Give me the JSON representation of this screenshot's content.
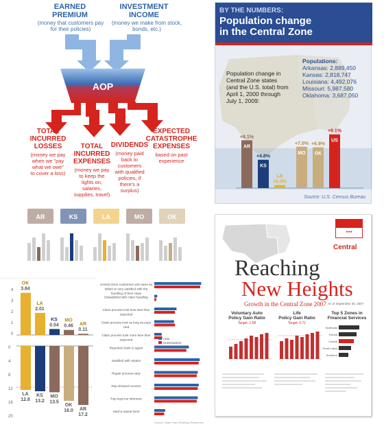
{
  "colors": {
    "blue": "#2a62a8",
    "red": "#d5241d",
    "purple": "#5b3f8d",
    "brown": "#8b6a5b",
    "gold": "#e7b02f",
    "tan": "#c9ad7f",
    "navy": "#1c3d7a"
  },
  "aop": {
    "earned_title": "EARNED\nPREMIUM",
    "earned_sub": "(money that customers pay\nfor their policies)",
    "invest_title": "INVESTMENT\nINCOME",
    "invest_sub": "(money we make from stock,\nbonds, etc.)",
    "center": "AOP",
    "outputs": [
      {
        "title": "TOTAL\nINCURRED\nLOSSES",
        "sub": "(money we pay\nwhen we \"pay\nwhat we owe\"\nto cover a loss)"
      },
      {
        "title": "TOTAL\nINCURRED\nEXPENSES",
        "sub": "(money we pay\nto keep the\nlights on,\nsalaries,\nsupplies, travel)"
      },
      {
        "title": "DIVIDENDS",
        "sub": "(money paid\nback to\ncustomers\nwith qualified\npolicies, if\nthere's a\nsurplus)"
      },
      {
        "title": "EXPECTED\nCATASTROPHE\nEXPENSES",
        "sub": "based on past\nexperience"
      }
    ]
  },
  "numbers": {
    "kicker": "BY THE NUMBERS:",
    "title": "Population change\nin the Central Zone",
    "populations_label": "Populations:",
    "populations": [
      "Arkansas: 2,889,450",
      "Kansas: 2,818,747",
      "Louisiana: 4,492,076",
      "Missouri: 5,987,580",
      "Oklahoma: 3,687,050"
    ],
    "description": "Population change in\nCentral Zone states\n(and the U.S. total) from\nApril 1, 2000 through\nJuly 1, 2009:",
    "source": "Source: U.S. Census Bureau"
  },
  "chart_data": [
    {
      "type": "bar",
      "title": "",
      "categories": [
        "AR",
        "KS",
        "LA",
        "MO",
        "OK",
        "US"
      ],
      "values": [
        8.1,
        4.8,
        0.5,
        7.0,
        6.9,
        9.1
      ],
      "value_labels": [
        "+8.1%",
        "+4.8%",
        "+0.5%",
        "+7.0%",
        "+6.9%",
        "+9.1%"
      ],
      "colors": [
        "#8b6a5b",
        "#1c3d7a",
        "#e7b02f",
        "#c9ad7f",
        "#c9ad7f",
        "#d5241d"
      ],
      "ylim": [
        0,
        10
      ]
    },
    {
      "type": "bar",
      "title": "",
      "categories": [
        "OK",
        "LA",
        "KS",
        "MO",
        "AR"
      ],
      "values": [
        3.84,
        2.01,
        0.54,
        0.46,
        0.11
      ],
      "value_labels": [
        "3.84",
        "2.01",
        "0.54",
        "0.46",
        "0.11"
      ],
      "colors": [
        "#e7b02f",
        "#e7b02f",
        "#1c3d7a",
        "#8b6a5b",
        "#8b6a5b"
      ],
      "ylim": [
        0,
        4
      ]
    },
    {
      "type": "bar",
      "title": "",
      "categories": [
        "LA",
        "KS",
        "MO",
        "OK",
        "AR"
      ],
      "values": [
        12.8,
        13.2,
        13.5,
        16.0,
        17.2
      ],
      "value_labels": [
        "12.8",
        "13.2",
        "13.5",
        "16.0",
        "17.2"
      ],
      "colors": [
        "#e7b02f",
        "#1c3d7a",
        "#8b6a5b",
        "#c9ad7f",
        "#8b6a5b"
      ],
      "ylim": [
        0,
        20
      ]
    },
    {
      "type": "bar",
      "title": "",
      "categories": [
        "Central Zone customers who were satisfied or very satisfied with the handling of their claim",
        "Dissatisfied with claim handling",
        "Claim process took less time than expected",
        "Claim process took as long as expected",
        "Claim process took more time than expected",
        "Reported claim to agent",
        "Satisfied with repairs",
        "Repair process easy",
        "Rep showed concern",
        "Rep kept me informed",
        "Had to repeat facts"
      ],
      "series": [
        {
          "name": "Auto",
          "values": [
            95,
            6,
            45,
            40,
            15,
            70,
            92,
            88,
            90,
            88,
            22
          ]
        },
        {
          "name": "Homeowners",
          "values": [
            93,
            4,
            42,
            42,
            16,
            65,
            90,
            86,
            88,
            86,
            20
          ]
        }
      ],
      "ylim": [
        0,
        100
      ]
    }
  ],
  "state_labels": [
    "AR",
    "KS",
    "LA",
    "MO",
    "OK"
  ],
  "y_axis_a": [
    "4",
    "3",
    "2",
    "1",
    "0"
  ],
  "y_axis_b": [
    "0",
    "4",
    "8",
    "12",
    "16",
    "20"
  ],
  "legend": {
    "auto": "Auto",
    "home": "Homeowners"
  },
  "survey_source": "Source: State Farm Strategic Resources",
  "reaching": {
    "line1": "Reaching",
    "line2": "New Heights",
    "tagline": "Growth in the Central Zone 2007",
    "date": "As of September 30, 2007",
    "badge": "Central",
    "chart1_title": "Voluntary Auto\nPolicy Gain Ratio",
    "chart1_sub": "Target: 1.58",
    "chart2_title": "Life\nPolicy Gain Ratio",
    "chart2_sub": "Target: 0.71",
    "chart3_title": "Top 5 Zones in\nFinancial Services",
    "zones": [
      "Northeast",
      "Florida",
      "Central",
      "Great Lakes",
      "Southern"
    ]
  }
}
